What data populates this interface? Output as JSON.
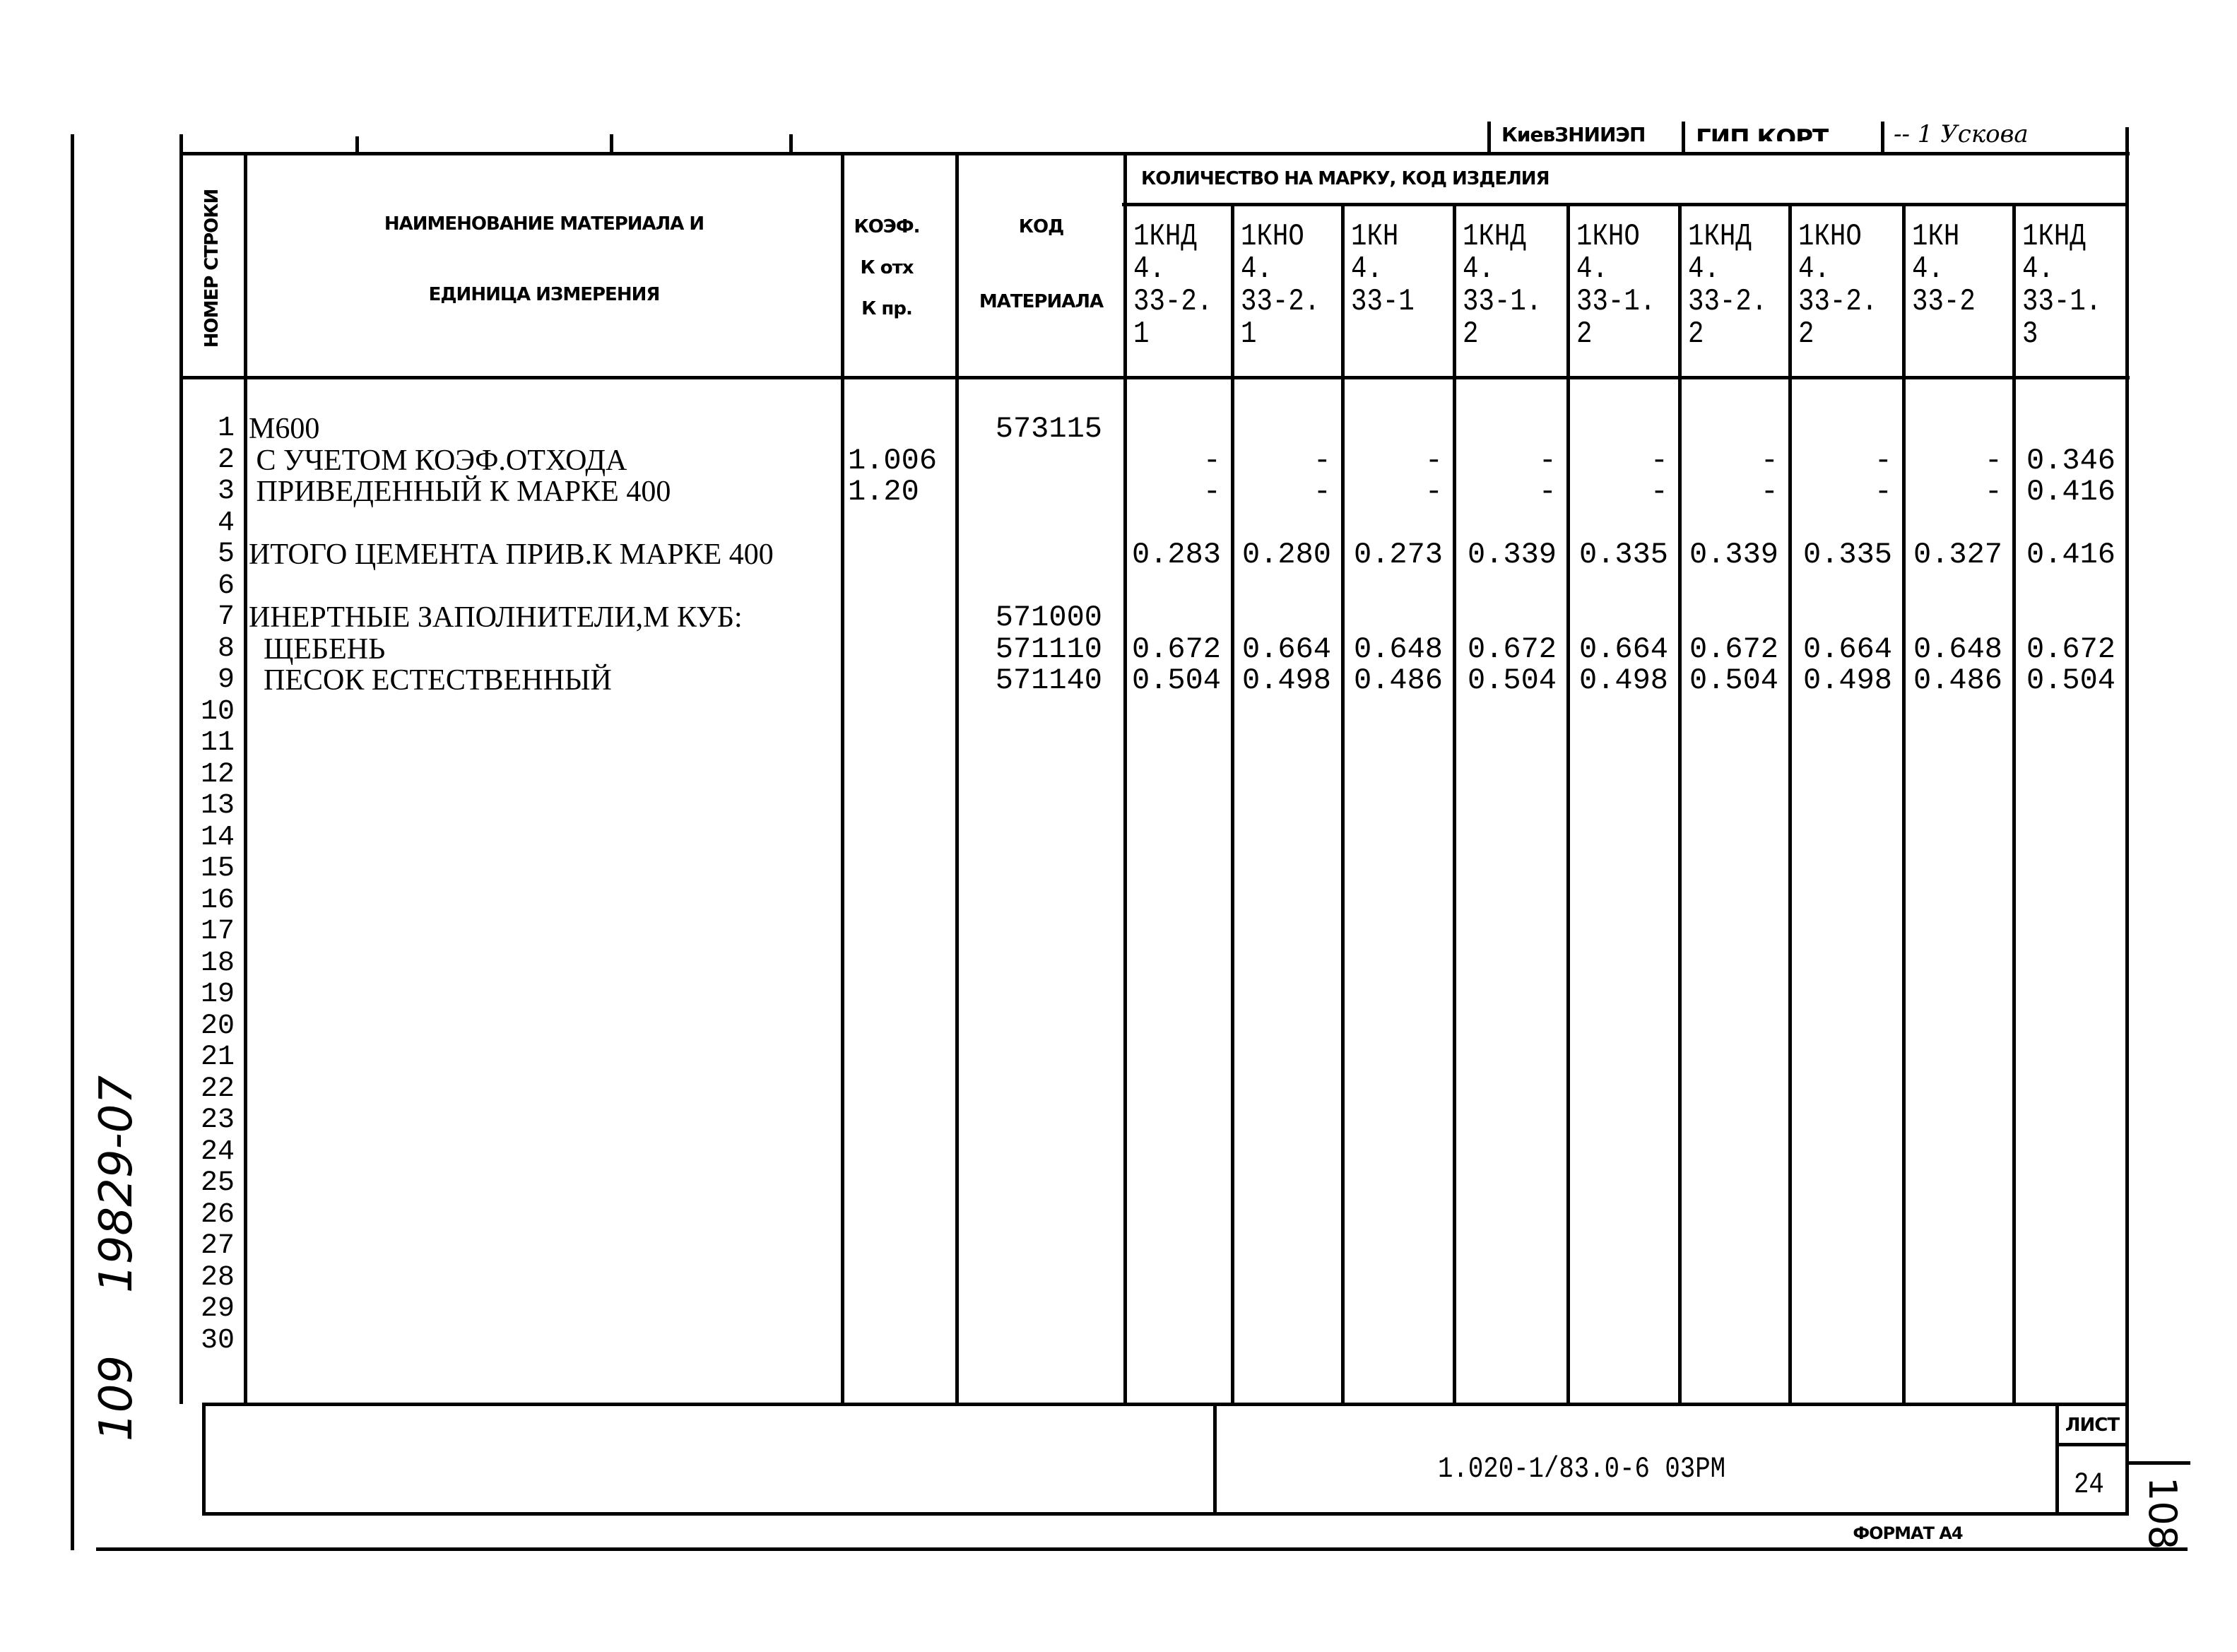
{
  "top_strip": {
    "org": "КиевЗНИИЭП",
    "fragment1": "ГИП  КОРТ",
    "fragment2": "-- 1  Ускова"
  },
  "header": {
    "row_number": "НОМЕР СТРОКИ",
    "name_line1": "НАИМЕНОВАНИЕ  МАТЕРИАЛА  И",
    "name_line2": "ЕДИНИЦА ИЗМЕРЕНИЯ",
    "koef_line1": "КОЭФ.",
    "koef_line2": "К отх",
    "koef_line3": "К пр.",
    "code_line1": "КОД",
    "code_line2": "МАТЕРИАЛА",
    "quantity": "КОЛИЧЕСТВО НА МАРКУ, КОД ИЗДЕЛИЯ",
    "products": [
      "1КНД\n4.\n33-2.\n1",
      "1КНО\n4.\n33-2.\n1",
      "1КН\n4.\n33-1",
      "1КНД\n4.\n33-1.\n2",
      "1КНО\n4.\n33-1.\n2",
      "1КНД\n4.\n33-2.\n2",
      "1КНО\n4.\n33-2.\n2",
      "1КН\n4.\n33-2",
      "1КНД\n4.\n33-1.\n3"
    ]
  },
  "rows": [
    {
      "n": "1",
      "name": "М600",
      "koef": "",
      "code": "573115",
      "values": []
    },
    {
      "n": "2",
      "name": " С УЧЕТОМ КОЭФ.ОТХОДА",
      "koef": "1.006",
      "code": "",
      "values": [
        "-",
        "-",
        "-",
        "-",
        "-",
        "-",
        "-",
        "-",
        "0.346"
      ]
    },
    {
      "n": "3",
      "name": " ПРИВЕДЕННЫЙ К МАРКЕ 400",
      "koef": "1.20",
      "code": "",
      "values": [
        "-",
        "-",
        "-",
        "-",
        "-",
        "-",
        "-",
        "-",
        "0.416"
      ]
    },
    {
      "n": "4",
      "name": "",
      "koef": "",
      "code": "",
      "values": []
    },
    {
      "n": "5",
      "name": "ИТОГО ЦЕМЕНТА ПРИВ.К МАРКЕ 400",
      "koef": "",
      "code": "",
      "values": [
        "0.283",
        "0.280",
        "0.273",
        "0.339",
        "0.335",
        "0.339",
        "0.335",
        "0.327",
        "0.416"
      ]
    },
    {
      "n": "6",
      "name": "",
      "koef": "",
      "code": "",
      "values": []
    },
    {
      "n": "7",
      "name": "ИНЕРТНЫЕ ЗАПОЛНИТЕЛИ,М КУБ:",
      "koef": "",
      "code": "571000",
      "values": []
    },
    {
      "n": "8",
      "name": "  ЩЕБЕНЬ",
      "koef": "",
      "code": "571110",
      "values": [
        "0.672",
        "0.664",
        "0.648",
        "0.672",
        "0.664",
        "0.672",
        "0.664",
        "0.648",
        "0.672"
      ]
    },
    {
      "n": "9",
      "name": "  ПЕСОК ЕСТЕСТВЕННЫЙ",
      "koef": "",
      "code": "571140",
      "values": [
        "0.504",
        "0.498",
        "0.486",
        "0.504",
        "0.498",
        "0.504",
        "0.498",
        "0.486",
        "0.504"
      ]
    },
    {
      "n": "10"
    },
    {
      "n": "11"
    },
    {
      "n": "12"
    },
    {
      "n": "13"
    },
    {
      "n": "14"
    },
    {
      "n": "15"
    },
    {
      "n": "16"
    },
    {
      "n": "17"
    },
    {
      "n": "18"
    },
    {
      "n": "19"
    },
    {
      "n": "20"
    },
    {
      "n": "21"
    },
    {
      "n": "22"
    },
    {
      "n": "23"
    },
    {
      "n": "24"
    },
    {
      "n": "25"
    },
    {
      "n": "26"
    },
    {
      "n": "27"
    },
    {
      "n": "28"
    },
    {
      "n": "29"
    },
    {
      "n": "30"
    }
  ],
  "title_block": {
    "designation": "1.020-1/83.0-6 03РМ",
    "sheet_label": "ЛИСТ",
    "sheet_number": "24"
  },
  "format": "ФОРМАТ А4",
  "margin_notes": {
    "inventory": "19829-07",
    "left_page": "109",
    "right_page": "108"
  }
}
